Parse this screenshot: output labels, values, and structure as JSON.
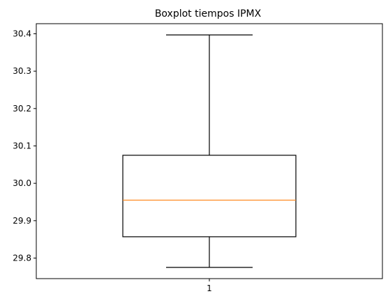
{
  "chart_data": {
    "type": "boxplot",
    "title": "Boxplot tiempos IPMX",
    "xlabel": "",
    "ylabel": "",
    "categories": [
      "1"
    ],
    "series": [
      {
        "whisker_low": 29.775,
        "q1": 29.857,
        "median": 29.955,
        "q3": 30.075,
        "whisker_high": 30.397
      }
    ],
    "xlim": [
      0.5,
      1.5
    ],
    "ylim": [
      29.745,
      30.427
    ],
    "yticks": [
      29.8,
      29.9,
      30.0,
      30.1,
      30.2,
      30.3,
      30.4
    ],
    "ytick_labels": [
      "29.8",
      "29.9",
      "30.0",
      "30.1",
      "30.2",
      "30.3",
      "30.4"
    ],
    "grid": false,
    "colors": {
      "box": "#000000",
      "median": "#ff7f0e",
      "axes": "#000000"
    }
  }
}
